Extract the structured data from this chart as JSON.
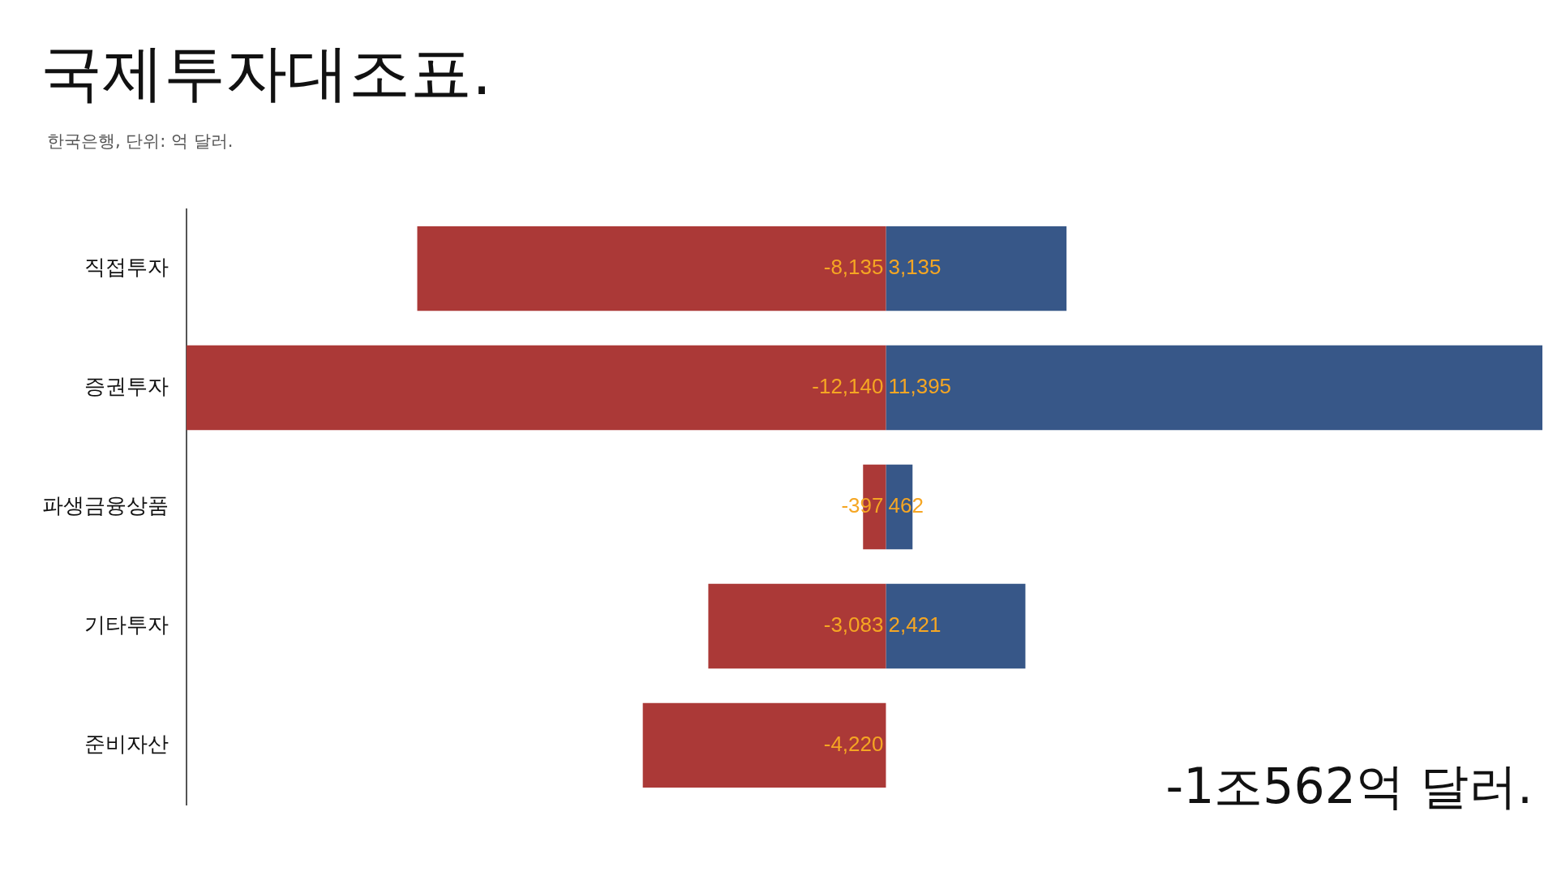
{
  "chart_data": {
    "type": "bar",
    "orientation": "horizontal",
    "stacked": true,
    "title": "국제투자대조표.",
    "subtitle": "한국은행, 단위: 억 달러.",
    "categories": [
      "직접투자",
      "증권투자",
      "파생금융상품",
      "기타투자",
      "준비자산"
    ],
    "series": [
      {
        "color": "#ab3937",
        "values": [
          -8135,
          -12140,
          -397,
          -3083,
          -4220
        ],
        "value_labels": [
          "-8,135",
          "-12,140",
          "-397",
          "-3,083",
          "-4,220"
        ]
      },
      {
        "color": "#375788",
        "values": [
          3135,
          11395,
          462,
          2421,
          null
        ],
        "value_labels": [
          "3,135",
          "11,395",
          "462",
          "2,421",
          null
        ]
      }
    ],
    "xlim": [
      -12140,
      11395
    ],
    "legend": false,
    "tick_labels": "y",
    "annotations": [
      "-1조562억 달러."
    ]
  }
}
